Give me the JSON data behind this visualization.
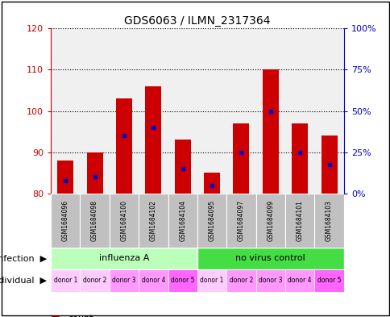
{
  "title": "GDS6063 / ILMN_2317364",
  "samples": [
    "GSM1684096",
    "GSM1684098",
    "GSM1684100",
    "GSM1684102",
    "GSM1684104",
    "GSM1684095",
    "GSM1684097",
    "GSM1684099",
    "GSM1684101",
    "GSM1684103"
  ],
  "bar_base": 80,
  "bar_tops": [
    88,
    90,
    103,
    106,
    93,
    85,
    97,
    110,
    97,
    94
  ],
  "percentile_values": [
    83,
    84,
    94,
    96,
    86,
    82,
    90,
    100,
    90,
    87
  ],
  "bar_color": "#cc0000",
  "percentile_color": "#0000cc",
  "ylim_left": [
    80,
    120
  ],
  "ylim_right": [
    0,
    100
  ],
  "yticks_left": [
    80,
    90,
    100,
    110,
    120
  ],
  "ytick_labels_right": [
    "0%",
    "25%",
    "50%",
    "75%",
    "100%"
  ],
  "yticks_right": [
    0,
    25,
    50,
    75,
    100
  ],
  "infection_groups": [
    {
      "label": "influenza A",
      "start": 0,
      "end": 5,
      "color": "#bbffbb"
    },
    {
      "label": "no virus control",
      "start": 5,
      "end": 10,
      "color": "#44dd44"
    }
  ],
  "donor_colors": [
    "#ffccff",
    "#ffccff",
    "#ff99ff",
    "#ff99ff",
    "#ff66ff",
    "#ffccff",
    "#ff99ff",
    "#ff99ff",
    "#ff99ff",
    "#ff66ff"
  ],
  "donor_labels": [
    "donor 1",
    "donor 2",
    "donor 3",
    "donor 4",
    "donor 5",
    "donor 1",
    "donor 2",
    "donor 3",
    "donor 4",
    "donor 5"
  ],
  "tick_color_left": "#cc0000",
  "tick_color_right": "#0000cc",
  "bar_width": 0.55,
  "sample_bg_color": "#c0c0c0",
  "bg_color": "#f0f0f0"
}
